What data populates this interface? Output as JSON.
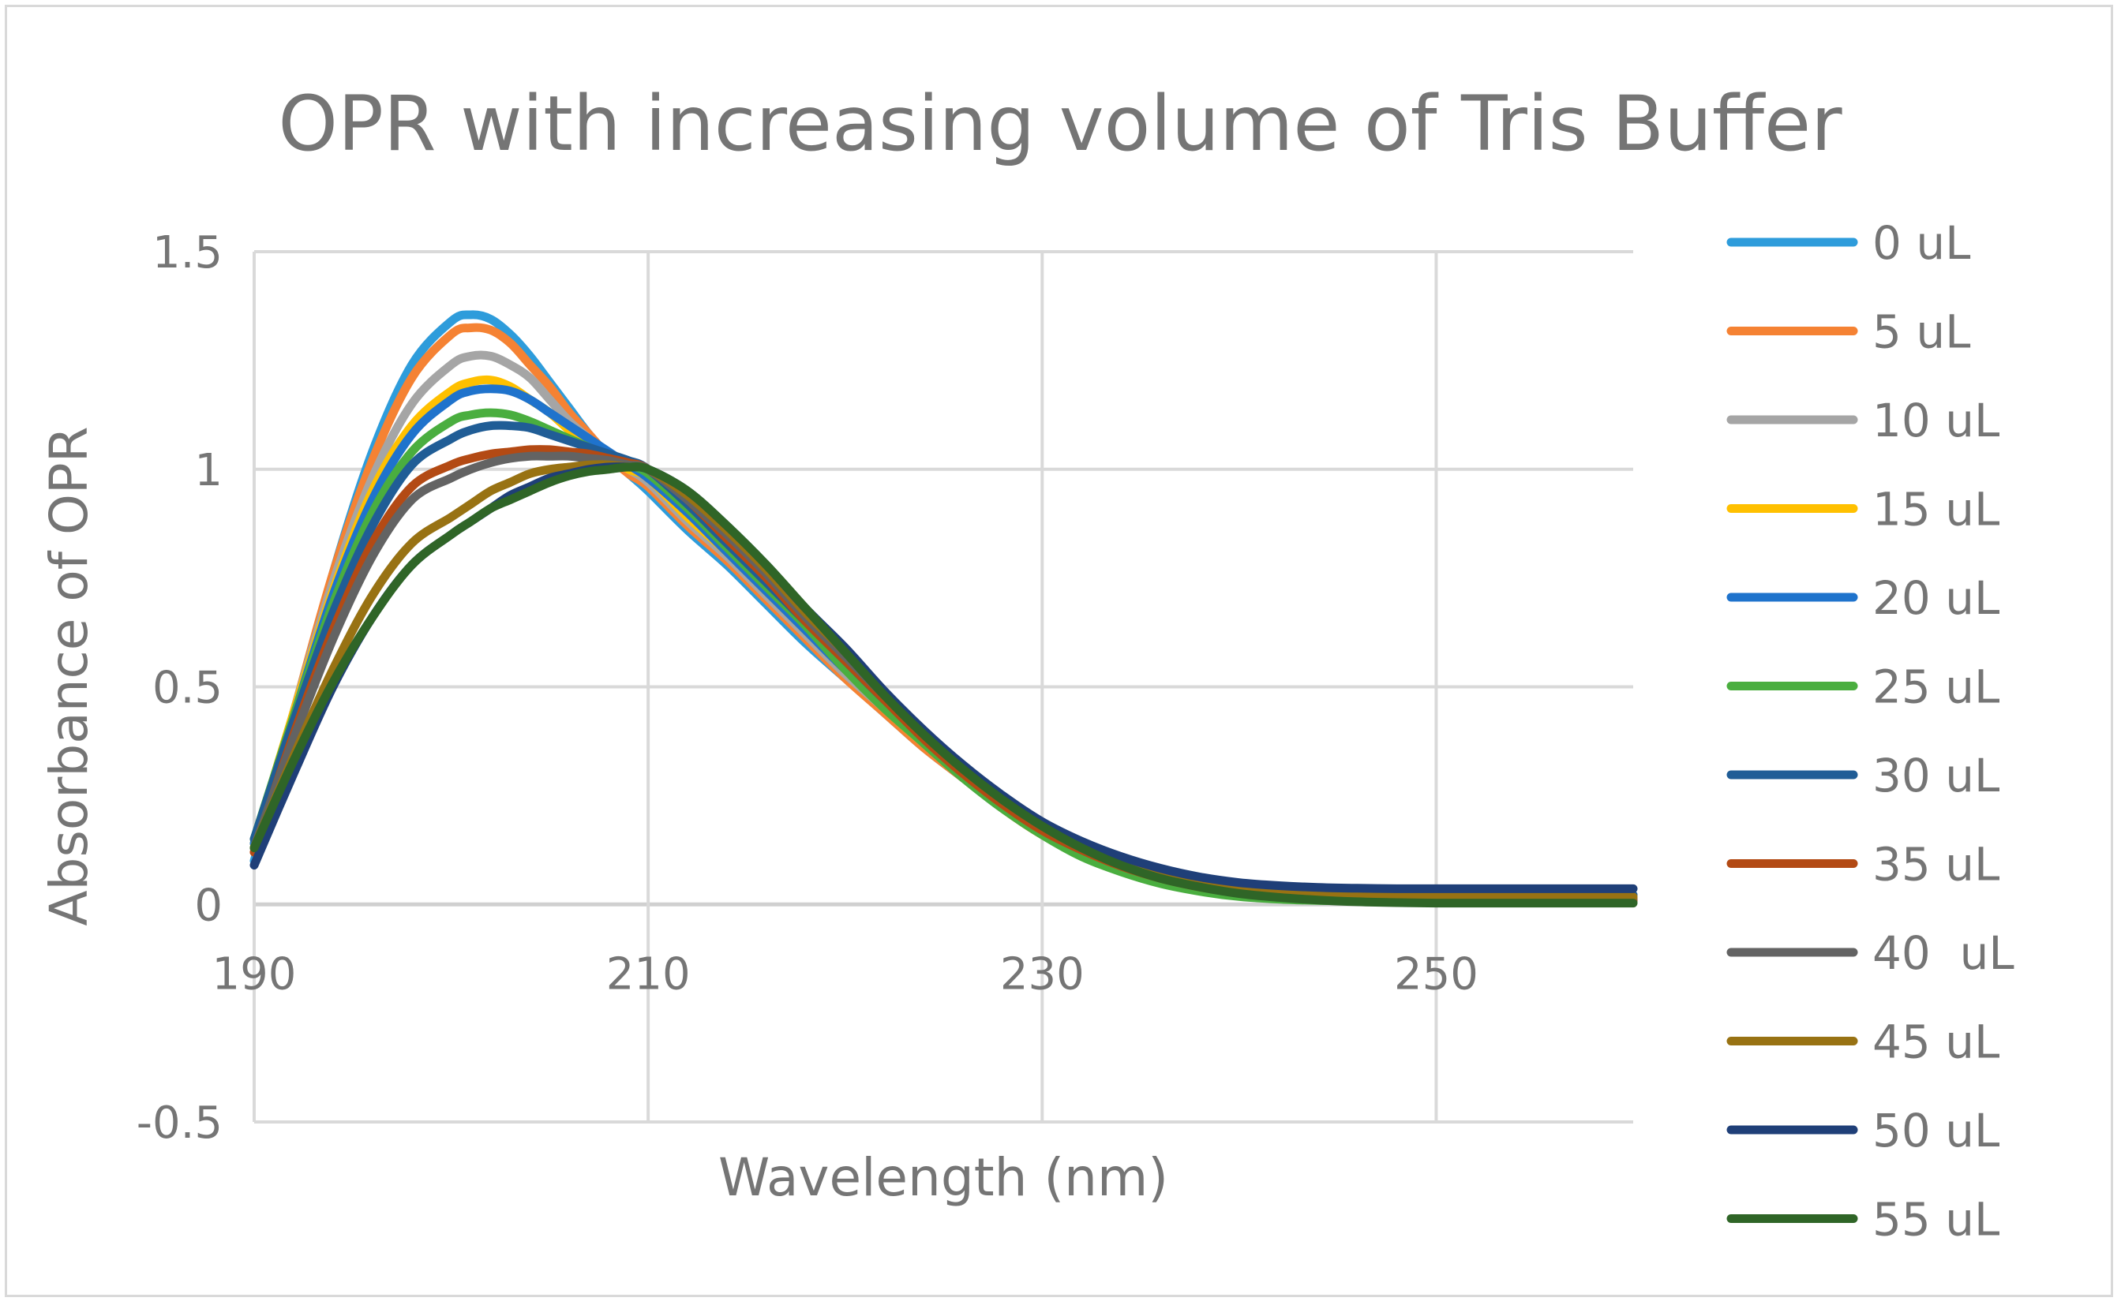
{
  "chart_data": {
    "type": "line",
    "title": "OPR with increasing volume of Tris Buffer",
    "xlabel": "Wavelength (nm)",
    "ylabel": "Absorbance of OPR",
    "xlim": [
      190,
      260
    ],
    "ylim": [
      -0.5,
      1.5
    ],
    "x_ticks": [
      190,
      210,
      230,
      250
    ],
    "x_tick_labels": [
      "190",
      "210",
      "230",
      "250"
    ],
    "y_ticks": [
      -0.5,
      0,
      0.5,
      1,
      1.5
    ],
    "y_tick_labels": [
      "-0.5",
      "0",
      "0.5",
      "1",
      "1.5"
    ],
    "grid": true,
    "legend_position": "right",
    "x": [
      190,
      192,
      194,
      196,
      198,
      200,
      201,
      202,
      203,
      204,
      205,
      206,
      207,
      208,
      209,
      210,
      212,
      214,
      216,
      218,
      220,
      222,
      224,
      226,
      228,
      230,
      232,
      234,
      236,
      238,
      240,
      242,
      244,
      246,
      248,
      250,
      252,
      254,
      256,
      258,
      260
    ],
    "series": [
      {
        "name": "0 uL",
        "color": "#2E9CDB",
        "values": [
          0.1,
          0.42,
          0.76,
          1.04,
          1.24,
          1.34,
          1.355,
          1.345,
          1.31,
          1.26,
          1.2,
          1.14,
          1.08,
          1.03,
          0.99,
          0.95,
          0.86,
          0.78,
          0.69,
          0.6,
          0.52,
          0.44,
          0.36,
          0.29,
          0.22,
          0.165,
          0.12,
          0.085,
          0.058,
          0.038,
          0.025,
          0.018,
          0.014,
          0.012,
          0.011,
          0.01,
          0.01,
          0.01,
          0.01,
          0.01,
          0.01
        ]
      },
      {
        "name": "5 uL",
        "color": "#F58233",
        "values": [
          0.12,
          0.44,
          0.76,
          1.02,
          1.21,
          1.31,
          1.325,
          1.32,
          1.29,
          1.24,
          1.19,
          1.13,
          1.08,
          1.03,
          0.99,
          0.96,
          0.87,
          0.79,
          0.7,
          0.61,
          0.52,
          0.44,
          0.36,
          0.29,
          0.22,
          0.16,
          0.115,
          0.08,
          0.055,
          0.036,
          0.024,
          0.017,
          0.014,
          0.012,
          0.011,
          0.01,
          0.01,
          0.01,
          0.01,
          0.01,
          0.01
        ]
      },
      {
        "name": "10 uL",
        "color": "#A5A5A5",
        "values": [
          0.13,
          0.44,
          0.74,
          0.98,
          1.15,
          1.24,
          1.26,
          1.26,
          1.24,
          1.21,
          1.16,
          1.11,
          1.07,
          1.03,
          1.0,
          0.97,
          0.88,
          0.8,
          0.71,
          0.62,
          0.53,
          0.45,
          0.37,
          0.3,
          0.23,
          0.17,
          0.12,
          0.085,
          0.058,
          0.038,
          0.025,
          0.018,
          0.014,
          0.012,
          0.011,
          0.01,
          0.01,
          0.01,
          0.01,
          0.01,
          0.01
        ]
      },
      {
        "name": "15 uL",
        "color": "#FFC000",
        "values": [
          0.14,
          0.44,
          0.72,
          0.95,
          1.1,
          1.18,
          1.2,
          1.205,
          1.19,
          1.16,
          1.13,
          1.09,
          1.06,
          1.03,
          1.0,
          0.98,
          0.89,
          0.81,
          0.72,
          0.63,
          0.54,
          0.45,
          0.37,
          0.3,
          0.23,
          0.17,
          0.125,
          0.088,
          0.06,
          0.04,
          0.026,
          0.019,
          0.015,
          0.012,
          0.011,
          0.01,
          0.01,
          0.01,
          0.01,
          0.01,
          0.01
        ]
      },
      {
        "name": "20 uL",
        "color": "#1F73CC",
        "values": [
          0.14,
          0.43,
          0.71,
          0.93,
          1.08,
          1.16,
          1.18,
          1.185,
          1.18,
          1.16,
          1.13,
          1.1,
          1.07,
          1.04,
          1.01,
          0.98,
          0.9,
          0.81,
          0.72,
          0.63,
          0.54,
          0.46,
          0.38,
          0.3,
          0.23,
          0.17,
          0.125,
          0.088,
          0.06,
          0.04,
          0.026,
          0.019,
          0.015,
          0.012,
          0.011,
          0.01,
          0.01,
          0.01,
          0.01,
          0.01,
          0.01
        ]
      },
      {
        "name": "25 uL",
        "color": "#4AAE3F",
        "values": [
          0.15,
          0.43,
          0.69,
          0.9,
          1.04,
          1.11,
          1.125,
          1.13,
          1.125,
          1.11,
          1.09,
          1.07,
          1.05,
          1.03,
          1.01,
          0.99,
          0.91,
          0.82,
          0.73,
          0.64,
          0.54,
          0.45,
          0.37,
          0.29,
          0.22,
          0.16,
          0.11,
          0.075,
          0.048,
          0.03,
          0.018,
          0.012,
          0.009,
          0.008,
          0.007,
          0.007,
          0.007,
          0.007,
          0.007,
          0.007,
          0.007
        ]
      },
      {
        "name": "30 uL",
        "color": "#205D96",
        "values": [
          0.15,
          0.42,
          0.67,
          0.87,
          1.01,
          1.07,
          1.09,
          1.1,
          1.1,
          1.095,
          1.08,
          1.065,
          1.05,
          1.035,
          1.02,
          1.0,
          0.92,
          0.83,
          0.74,
          0.65,
          0.56,
          0.47,
          0.39,
          0.31,
          0.24,
          0.18,
          0.135,
          0.098,
          0.07,
          0.05,
          0.036,
          0.029,
          0.025,
          0.023,
          0.022,
          0.022,
          0.022,
          0.022,
          0.022,
          0.022,
          0.022
        ]
      },
      {
        "name": "35 uL",
        "color": "#B34A14",
        "values": [
          0.12,
          0.39,
          0.63,
          0.83,
          0.96,
          1.01,
          1.025,
          1.035,
          1.04,
          1.045,
          1.045,
          1.04,
          1.035,
          1.025,
          1.015,
          1.0,
          0.93,
          0.84,
          0.75,
          0.65,
          0.56,
          0.47,
          0.38,
          0.3,
          0.23,
          0.17,
          0.125,
          0.088,
          0.06,
          0.04,
          0.026,
          0.019,
          0.015,
          0.012,
          0.011,
          0.01,
          0.01,
          0.01,
          0.01,
          0.01,
          0.01
        ]
      },
      {
        "name": "40  uL",
        "color": "#636363",
        "values": [
          0.13,
          0.38,
          0.61,
          0.8,
          0.93,
          0.98,
          1.0,
          1.015,
          1.025,
          1.03,
          1.03,
          1.03,
          1.025,
          1.02,
          1.01,
          1.0,
          0.93,
          0.85,
          0.76,
          0.66,
          0.57,
          0.48,
          0.39,
          0.31,
          0.24,
          0.18,
          0.13,
          0.092,
          0.064,
          0.044,
          0.03,
          0.022,
          0.018,
          0.016,
          0.015,
          0.015,
          0.015,
          0.015,
          0.015,
          0.015,
          0.015
        ]
      },
      {
        "name": "45 uL",
        "color": "#987213",
        "values": [
          0.13,
          0.34,
          0.54,
          0.71,
          0.83,
          0.89,
          0.92,
          0.95,
          0.97,
          0.99,
          1.0,
          1.005,
          1.01,
          1.01,
          1.005,
          1.0,
          0.94,
          0.86,
          0.77,
          0.67,
          0.58,
          0.48,
          0.39,
          0.31,
          0.24,
          0.18,
          0.13,
          0.095,
          0.067,
          0.046,
          0.032,
          0.024,
          0.02,
          0.018,
          0.017,
          0.017,
          0.017,
          0.017,
          0.017,
          0.017,
          0.017
        ]
      },
      {
        "name": "50 uL",
        "color": "#1F3F78",
        "values": [
          0.09,
          0.3,
          0.5,
          0.66,
          0.78,
          0.85,
          0.88,
          0.91,
          0.94,
          0.96,
          0.98,
          0.99,
          1.0,
          1.005,
          1.005,
          1.0,
          0.95,
          0.87,
          0.78,
          0.68,
          0.59,
          0.49,
          0.4,
          0.32,
          0.25,
          0.19,
          0.145,
          0.11,
          0.083,
          0.063,
          0.05,
          0.043,
          0.039,
          0.037,
          0.036,
          0.036,
          0.036,
          0.036,
          0.036,
          0.036,
          0.036
        ]
      },
      {
        "name": "55 uL",
        "color": "#2F6527",
        "values": [
          0.13,
          0.33,
          0.51,
          0.66,
          0.78,
          0.85,
          0.88,
          0.91,
          0.93,
          0.95,
          0.97,
          0.985,
          0.995,
          1.0,
          1.005,
          1.0,
          0.95,
          0.87,
          0.78,
          0.68,
          0.58,
          0.48,
          0.39,
          0.31,
          0.24,
          0.18,
          0.13,
          0.09,
          0.06,
          0.04,
          0.025,
          0.016,
          0.01,
          0.006,
          0.004,
          0.003,
          0.003,
          0.003,
          0.003,
          0.003,
          0.003
        ]
      }
    ]
  }
}
